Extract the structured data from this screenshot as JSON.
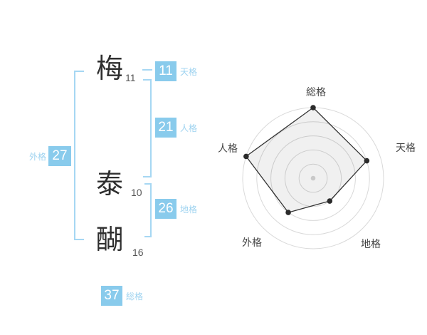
{
  "name_display": {
    "characters": [
      {
        "char": "梅",
        "strokes": "11"
      },
      {
        "char": "泰",
        "strokes": "10"
      },
      {
        "char": "醐",
        "strokes": "16"
      }
    ],
    "badges": {
      "tenkaku": {
        "value": "11",
        "label": "天格"
      },
      "jinkaku": {
        "value": "21",
        "label": "人格"
      },
      "chikaku": {
        "value": "26",
        "label": "地格"
      },
      "gaikaku": {
        "value": "27",
        "label": "外格"
      },
      "soukaku": {
        "value": "37",
        "label": "総格"
      }
    },
    "colors": {
      "badge_bg": "#89cbec",
      "badge_text": "#ffffff",
      "bracket": "#a6d7f3",
      "category_label_text": "#9ed3f0",
      "stroke_count_text": "#555555",
      "kanji_text": "#2e2e2e"
    }
  },
  "chart_data": {
    "type": "radar",
    "title": "",
    "categories": [
      "総格",
      "天格",
      "地格",
      "外格",
      "人格"
    ],
    "values": [
      5,
      4,
      2,
      3,
      5
    ],
    "max": 5,
    "rings": 5,
    "angles_deg": [
      90,
      18,
      -54,
      -126,
      162
    ],
    "legend": "none",
    "grid": "concentric-circles",
    "ring_color": "#d9d9d9",
    "fill_color": "rgba(0,0,0,0.06)",
    "line_color": "#333333",
    "point_color": "#2b2b2b",
    "center_dot_color": "#c9c9c9",
    "label_color": "#444444"
  }
}
